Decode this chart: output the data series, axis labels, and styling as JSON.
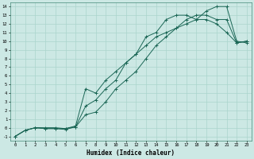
{
  "xlabel": "Humidex (Indice chaleur)",
  "bg_color": "#cce8e4",
  "grid_color": "#aad4cc",
  "line_color": "#1a6655",
  "xlim": [
    -0.5,
    23.5
  ],
  "ylim": [
    -1.5,
    14.5
  ],
  "xticks": [
    0,
    1,
    2,
    3,
    4,
    5,
    6,
    7,
    8,
    9,
    10,
    11,
    12,
    13,
    14,
    15,
    16,
    17,
    18,
    19,
    20,
    21,
    22,
    23
  ],
  "yticks": [
    -1,
    0,
    1,
    2,
    3,
    4,
    5,
    6,
    7,
    8,
    9,
    10,
    11,
    12,
    13,
    14
  ],
  "line1_x": [
    0,
    1,
    2,
    3,
    4,
    5,
    6,
    7,
    8,
    9,
    10,
    11,
    12,
    13,
    14,
    15,
    16,
    17,
    18,
    19,
    20,
    21,
    22,
    23
  ],
  "line1_y": [
    -1,
    -0.3,
    0,
    0,
    0,
    -0.1,
    0.2,
    4.5,
    4,
    5.5,
    6.5,
    7.5,
    8.5,
    9.5,
    10.5,
    11,
    11.5,
    12,
    12.5,
    13.5,
    14,
    14,
    10,
    9.8
  ],
  "line2_x": [
    0,
    1,
    2,
    3,
    4,
    5,
    6,
    7,
    8,
    9,
    10,
    11,
    12,
    13,
    14,
    15,
    16,
    17,
    18,
    19,
    20,
    21,
    22,
    23
  ],
  "line2_y": [
    -1,
    -0.3,
    0,
    -0.1,
    -0.1,
    -0.2,
    0.1,
    2.5,
    3.2,
    4.5,
    5.5,
    7.5,
    8.5,
    10.5,
    11.0,
    12.5,
    13.0,
    13.0,
    12.5,
    12.5,
    12.0,
    11.0,
    9.8,
    10.0
  ],
  "line3_x": [
    0,
    1,
    2,
    3,
    4,
    5,
    6,
    7,
    8,
    9,
    10,
    11,
    12,
    13,
    14,
    15,
    16,
    17,
    18,
    19,
    20,
    21,
    22,
    23
  ],
  "line3_y": [
    -1,
    -0.3,
    0,
    -0.1,
    -0.1,
    -0.1,
    0.1,
    1.5,
    1.8,
    3.0,
    4.5,
    5.5,
    6.5,
    8.0,
    9.5,
    10.5,
    11.5,
    12.5,
    13.0,
    13.0,
    12.5,
    12.5,
    9.8,
    10.0
  ]
}
